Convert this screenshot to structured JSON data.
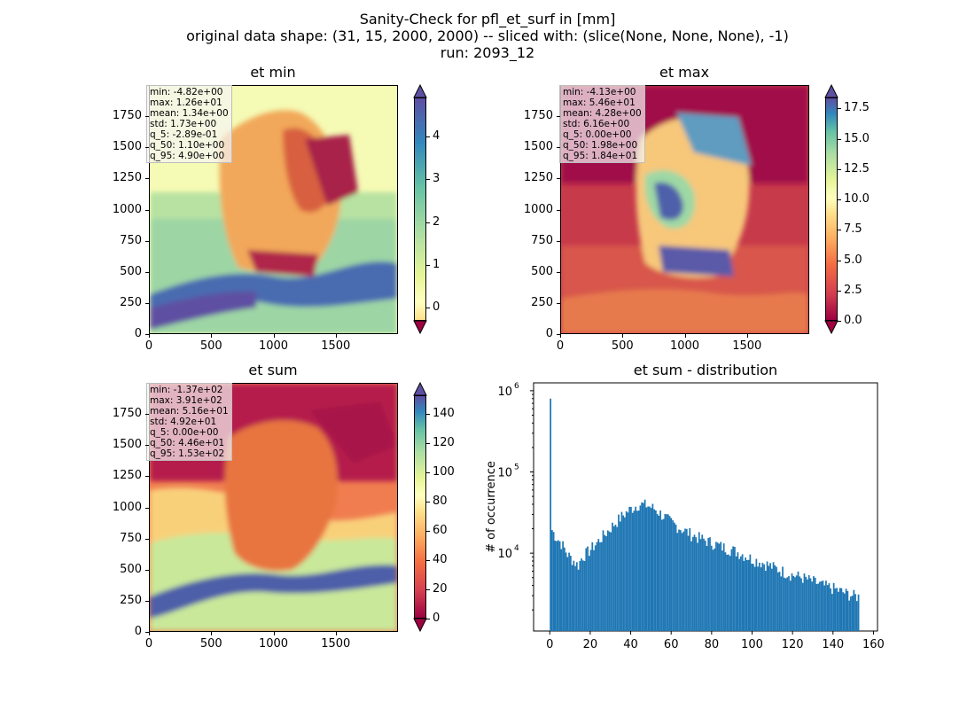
{
  "figure": {
    "title_lines": [
      "Sanity-Check for pfl_et_surf in [mm]",
      "original data shape: (31, 15, 2000, 2000) -- sliced with: (slice(None, None, None), -1)",
      "run: 2093_12"
    ]
  },
  "chart_data": [
    {
      "type": "heatmap",
      "title": "et min",
      "x_ticks": [
        "0",
        "500",
        "1000",
        "1500"
      ],
      "y_ticks": [
        "0",
        "250",
        "500",
        "750",
        "1000",
        "1250",
        "1500",
        "1750"
      ],
      "xlim": [
        0,
        2000
      ],
      "ylim": [
        0,
        2000
      ],
      "colormap": "Spectral",
      "colorbar": {
        "ticks": [
          "0",
          "1",
          "2",
          "3",
          "4"
        ],
        "tick_values": [
          0,
          1,
          2,
          3,
          4
        ],
        "range": [
          -0.3,
          4.9
        ],
        "extend": "both"
      },
      "stats": [
        "min: -4.82e+00",
        "max: 1.26e+01",
        "mean: 1.34e+00",
        "std: 1.73e+00",
        "q_5: -2.89e-01",
        "q_50: 1.10e+00",
        "q_95: 4.90e+00"
      ]
    },
    {
      "type": "heatmap",
      "title": "et max",
      "x_ticks": [
        "0",
        "500",
        "1000",
        "1500"
      ],
      "y_ticks": [
        "0",
        "250",
        "500",
        "750",
        "1000",
        "1250",
        "1500",
        "1750"
      ],
      "xlim": [
        0,
        2000
      ],
      "ylim": [
        0,
        2000
      ],
      "colormap": "Spectral",
      "colorbar": {
        "ticks": [
          "0.0",
          "2.5",
          "5.0",
          "7.5",
          "10.0",
          "12.5",
          "15.0",
          "17.5"
        ],
        "tick_values": [
          0,
          2.5,
          5,
          7.5,
          10,
          12.5,
          15,
          17.5
        ],
        "range": [
          0,
          18.4
        ],
        "extend": "both"
      },
      "stats": [
        "min: -4.13e+00",
        "max: 5.46e+01",
        "mean: 4.28e+00",
        "std: 6.16e+00",
        "q_5: 0.00e+00",
        "q_50: 1.98e+00",
        "q_95: 1.84e+01"
      ]
    },
    {
      "type": "heatmap",
      "title": "et sum",
      "x_ticks": [
        "0",
        "500",
        "1000",
        "1500"
      ],
      "y_ticks": [
        "0",
        "250",
        "500",
        "750",
        "1000",
        "1250",
        "1500",
        "1750"
      ],
      "xlim": [
        0,
        2000
      ],
      "ylim": [
        0,
        2000
      ],
      "colormap": "Spectral",
      "colorbar": {
        "ticks": [
          "0",
          "20",
          "40",
          "60",
          "80",
          "100",
          "120",
          "140"
        ],
        "tick_values": [
          0,
          20,
          40,
          60,
          80,
          100,
          120,
          140
        ],
        "range": [
          0,
          153
        ],
        "extend": "both"
      },
      "stats": [
        "min: -1.37e+02",
        "max: 3.91e+02",
        "mean: 5.16e+01",
        "std: 4.92e+01",
        "q_5: 0.00e+00",
        "q_50: 4.46e+01",
        "q_95: 1.53e+02"
      ]
    },
    {
      "type": "bar",
      "title": "et sum - distribution",
      "ylabel": "# of occurrence",
      "xlabel": "",
      "yscale": "log",
      "x_ticks": [
        "0",
        "20",
        "40",
        "60",
        "80",
        "100",
        "120",
        "140",
        "160"
      ],
      "x_tick_values": [
        0,
        20,
        40,
        60,
        80,
        100,
        120,
        140,
        160
      ],
      "y_ticks": [
        "10^4",
        "10^5",
        "10^6"
      ],
      "xlim": [
        -8,
        162
      ],
      "ylim": [
        1100,
        1250000
      ],
      "bin_range": [
        0,
        153
      ],
      "bar_color": "#1f77b4",
      "spike": {
        "x": 0,
        "value": 800000
      },
      "curve_points": [
        [
          0.8,
          20000
        ],
        [
          3,
          16000
        ],
        [
          6,
          13000
        ],
        [
          9,
          9500
        ],
        [
          12,
          8000
        ],
        [
          14,
          7000
        ],
        [
          16,
          9000
        ],
        [
          20,
          11000
        ],
        [
          24,
          14000
        ],
        [
          28,
          18000
        ],
        [
          32,
          23000
        ],
        [
          36,
          29000
        ],
        [
          40,
          35000
        ],
        [
          44,
          40000
        ],
        [
          48,
          39000
        ],
        [
          52,
          35000
        ],
        [
          56,
          29000
        ],
        [
          60,
          24000
        ],
        [
          65,
          20000
        ],
        [
          70,
          17000
        ],
        [
          75,
          15000
        ],
        [
          80,
          13500
        ],
        [
          85,
          12000
        ],
        [
          90,
          11000
        ],
        [
          95,
          9800
        ],
        [
          100,
          8500
        ],
        [
          105,
          7700
        ],
        [
          110,
          6800
        ],
        [
          115,
          6000
        ],
        [
          120,
          5400
        ],
        [
          125,
          5000
        ],
        [
          130,
          4500
        ],
        [
          135,
          4000
        ],
        [
          140,
          3700
        ],
        [
          145,
          3300
        ],
        [
          150,
          3000
        ],
        [
          153,
          2900
        ]
      ]
    }
  ]
}
